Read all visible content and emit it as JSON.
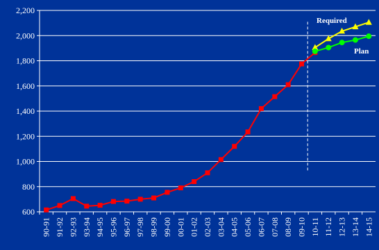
{
  "chart_data": {
    "type": "line",
    "title": "",
    "xlabel": "",
    "ylabel": "",
    "ylim": [
      600,
      2200
    ],
    "yticks": [
      600,
      800,
      1000,
      1200,
      1400,
      1600,
      1800,
      2000,
      2200
    ],
    "ytick_labels": [
      "600",
      "800",
      "1,000",
      "1,200",
      "1,400",
      "1,600",
      "1,800",
      "2,000",
      "2,200"
    ],
    "grid": "horizontal",
    "background": "#003399",
    "categories": [
      "90-91",
      "91-92",
      "92-93",
      "93-94",
      "94-95",
      "95-96",
      "96-97",
      "97-98",
      "98-99",
      "99-00",
      "00-01",
      "01-02",
      "02-03",
      "03-04",
      "04-05",
      "05-06",
      "06-07",
      "07-08",
      "08-09",
      "09-10",
      "10-11",
      "11-12",
      "12-13",
      "13-14",
      "14-15"
    ],
    "divider_after": "09-10",
    "series": [
      {
        "color": "#ff0000",
        "marker": "square",
        "values": [
          615,
          650,
          705,
          645,
          652,
          682,
          685,
          700,
          710,
          755,
          790,
          840,
          910,
          1015,
          1120,
          1235,
          1420,
          1515,
          1610,
          1775,
          1865,
          null,
          null,
          null,
          null
        ]
      },
      {
        "name": "Required",
        "color": "#ffff00",
        "marker": "triangle",
        "values": [
          null,
          null,
          null,
          null,
          null,
          null,
          null,
          null,
          null,
          null,
          null,
          null,
          null,
          null,
          null,
          null,
          null,
          null,
          null,
          null,
          1905,
          1975,
          2035,
          2070,
          2105
        ]
      },
      {
        "name": "Plan",
        "color": "#00ff00",
        "marker": "circle",
        "values": [
          null,
          null,
          null,
          null,
          null,
          null,
          null,
          null,
          null,
          null,
          null,
          null,
          null,
          null,
          null,
          null,
          null,
          null,
          null,
          null,
          1875,
          1905,
          1945,
          1965,
          1995
        ]
      }
    ],
    "annotations": [
      {
        "text": "Required",
        "series": "Required"
      },
      {
        "text": "Plan",
        "series": "Plan"
      }
    ]
  }
}
